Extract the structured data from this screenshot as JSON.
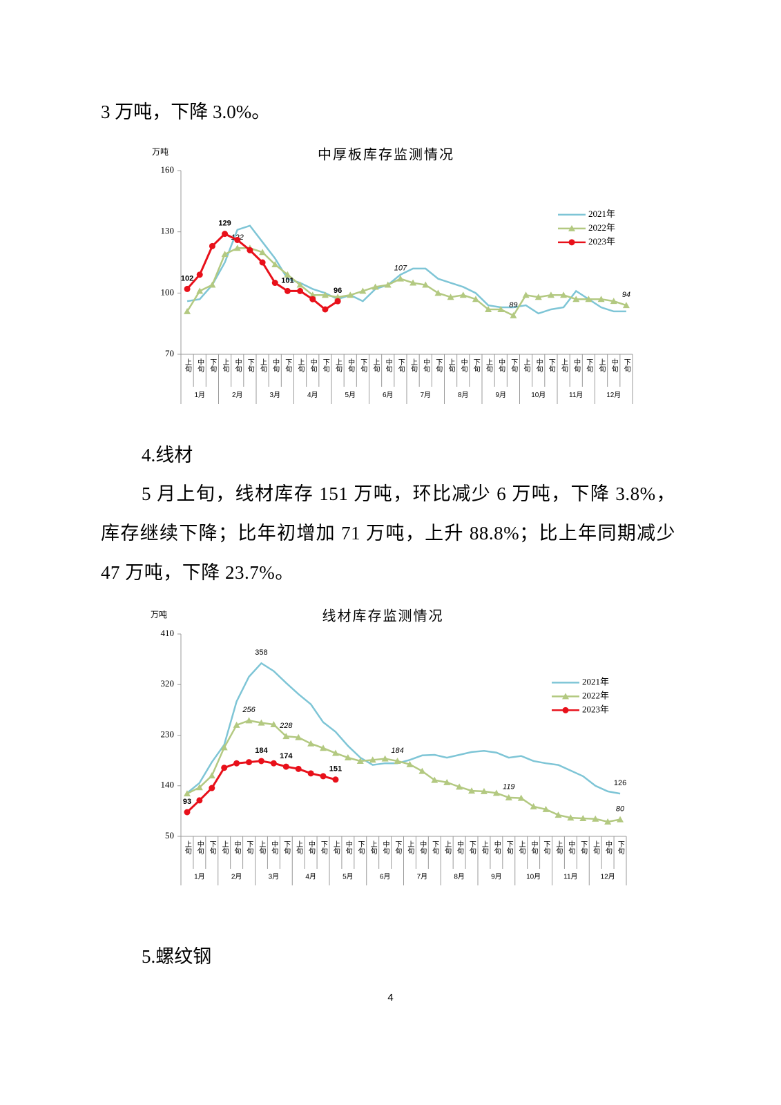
{
  "top_line": "3 万吨，下降 3.0%。",
  "section4_heading": "4.线材",
  "section4_body": "5 月上旬，线材库存 151 万吨，环比减少 6 万吨，下降 3.8%，库存继续下降；比年初增加 71 万吨，上升 88.8%；比上年同期减少 47 万吨，下降 23.7%。",
  "section5_heading": "5.螺纹钢",
  "page_number": "4",
  "chart_data": [
    {
      "type": "line",
      "title": "中厚板库存监测情况",
      "y_label": "万吨",
      "categories": [
        "上旬",
        "中旬",
        "下旬",
        "上旬",
        "中旬",
        "下旬",
        "上旬",
        "中旬",
        "下旬",
        "上旬",
        "中旬",
        "下旬",
        "上旬",
        "中旬",
        "下旬",
        "上旬",
        "中旬",
        "下旬",
        "上旬",
        "中旬",
        "下旬",
        "上旬",
        "中旬",
        "下旬",
        "上旬",
        "中旬",
        "下旬",
        "上旬",
        "中旬",
        "下旬",
        "上旬",
        "中旬",
        "下旬",
        "上旬",
        "中旬",
        "下旬"
      ],
      "months": [
        "1月",
        "2月",
        "3月",
        "4月",
        "5月",
        "6月",
        "7月",
        "8月",
        "9月",
        "10月",
        "11月",
        "12月"
      ],
      "ylim": [
        70,
        160
      ],
      "yticks": [
        70,
        100,
        130,
        160
      ],
      "grid": false,
      "legend": "right",
      "series": [
        {
          "name": "2021年",
          "color": "#7ec5d6",
          "marker": null,
          "labeled": [],
          "values": [
            96,
            97,
            104,
            115,
            131,
            133,
            125,
            117,
            107,
            105,
            102,
            100,
            97,
            99,
            96,
            102,
            104,
            109,
            112,
            112,
            107,
            105,
            103,
            100,
            94,
            93,
            93,
            94,
            90,
            92,
            93,
            101,
            97,
            93,
            91,
            91
          ]
        },
        {
          "name": "2022年",
          "color": "#b3c981",
          "marker": "triangle",
          "labeled": [
            4,
            17,
            26,
            35
          ],
          "values": [
            91,
            101,
            104,
            119,
            122,
            122,
            120,
            114,
            109,
            104,
            99,
            99,
            98,
            99,
            101,
            103,
            104,
            107,
            105,
            104,
            100,
            98,
            99,
            97,
            92,
            92,
            89,
            99,
            98,
            99,
            99,
            97,
            97,
            97,
            96,
            94
          ]
        },
        {
          "name": "2023年",
          "color": "#e8101a",
          "marker": "circle",
          "labeled": [
            0,
            3,
            8,
            12
          ],
          "values": [
            102,
            109,
            123,
            129,
            126,
            121,
            115,
            105,
            101,
            101,
            97,
            92,
            96,
            null,
            null,
            null,
            null,
            null,
            null,
            null,
            null,
            null,
            null,
            null,
            null,
            null,
            null,
            null,
            null,
            null,
            null,
            null,
            null,
            null,
            null,
            null
          ]
        }
      ]
    },
    {
      "type": "line",
      "title": "线材库存监测情况",
      "y_label": "万吨",
      "categories": [
        "上旬",
        "中旬",
        "下旬",
        "上旬",
        "中旬",
        "下旬",
        "上旬",
        "中旬",
        "下旬",
        "上旬",
        "中旬",
        "下旬",
        "上旬",
        "中旬",
        "下旬",
        "上旬",
        "中旬",
        "下旬",
        "上旬",
        "中旬",
        "下旬",
        "上旬",
        "中旬",
        "下旬",
        "上旬",
        "中旬",
        "下旬",
        "上旬",
        "中旬",
        "下旬",
        "上旬",
        "中旬",
        "下旬",
        "上旬",
        "中旬",
        "下旬"
      ],
      "months": [
        "1月",
        "2月",
        "3月",
        "4月",
        "5月",
        "6月",
        "7月",
        "8月",
        "9月",
        "10月",
        "11月",
        "12月"
      ],
      "ylim": [
        50,
        410
      ],
      "yticks": [
        50,
        140,
        230,
        320,
        410
      ],
      "grid": false,
      "legend": "right",
      "series": [
        {
          "name": "2021年",
          "color": "#7ec5d6",
          "marker": null,
          "labeled": [
            6,
            35
          ],
          "values": [
            127,
            145,
            182,
            213,
            290,
            334,
            358,
            344,
            323,
            303,
            285,
            253,
            236,
            211,
            190,
            177,
            180,
            180,
            186,
            194,
            195,
            190,
            195,
            200,
            202,
            199,
            190,
            193,
            184,
            180,
            177,
            167,
            157,
            140,
            130,
            126
          ]
        },
        {
          "name": "2022年",
          "color": "#b3c981",
          "marker": "triangle",
          "labeled": [
            5,
            8,
            17,
            26,
            35
          ],
          "values": [
            126,
            137,
            158,
            208,
            248,
            256,
            252,
            249,
            228,
            226,
            215,
            207,
            198,
            190,
            184,
            186,
            188,
            184,
            178,
            166,
            150,
            146,
            138,
            131,
            130,
            127,
            119,
            118,
            103,
            98,
            88,
            83,
            82,
            81,
            76,
            80
          ]
        },
        {
          "name": "2023年",
          "color": "#e8101a",
          "marker": "circle",
          "labeled": [
            0,
            6,
            8,
            12
          ],
          "values": [
            93,
            114,
            136,
            172,
            180,
            182,
            184,
            180,
            174,
            170,
            162,
            157,
            151,
            null,
            null,
            null,
            null,
            null,
            null,
            null,
            null,
            null,
            null,
            null,
            null,
            null,
            null,
            null,
            null,
            null,
            null,
            null,
            null,
            null,
            null,
            null
          ]
        }
      ]
    }
  ]
}
